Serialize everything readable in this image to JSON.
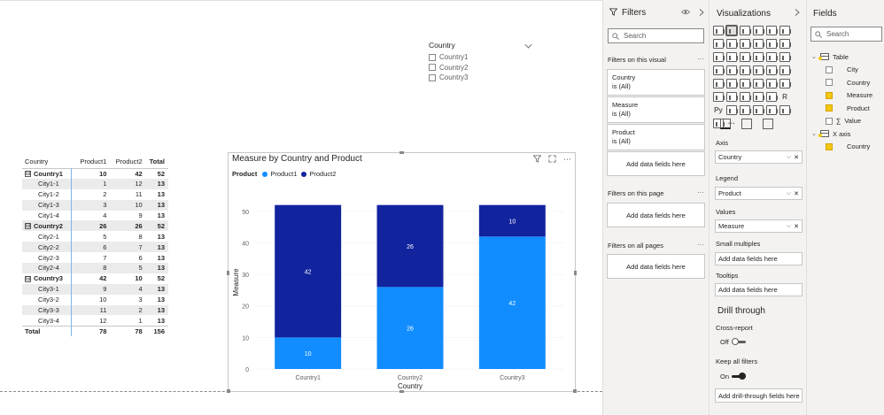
{
  "slicer": {
    "title": "Country",
    "options": [
      "Country1",
      "Country2",
      "Country3"
    ]
  },
  "matrix": {
    "headers": [
      "Country",
      "Product1",
      "Product2",
      "Total"
    ],
    "rows": [
      {
        "type": "group",
        "label": "Country1",
        "p1": "10",
        "p2": "42",
        "total": "52",
        "toggle": "⊟"
      },
      {
        "type": "child",
        "label": "City1-1",
        "p1": "1",
        "p2": "12",
        "total": "13"
      },
      {
        "type": "child",
        "label": "City1-2",
        "p1": "2",
        "p2": "11",
        "total": "13"
      },
      {
        "type": "child",
        "label": "City1-3",
        "p1": "3",
        "p2": "10",
        "total": "13"
      },
      {
        "type": "child",
        "label": "City1-4",
        "p1": "4",
        "p2": "9",
        "total": "13"
      },
      {
        "type": "group",
        "label": "Country2",
        "p1": "26",
        "p2": "26",
        "total": "52",
        "toggle": "⊟"
      },
      {
        "type": "child",
        "label": "City2-1",
        "p1": "5",
        "p2": "8",
        "total": "13"
      },
      {
        "type": "child",
        "label": "City2-2",
        "p1": "6",
        "p2": "7",
        "total": "13"
      },
      {
        "type": "child",
        "label": "City2-3",
        "p1": "7",
        "p2": "6",
        "total": "13"
      },
      {
        "type": "child",
        "label": "City2-4",
        "p1": "8",
        "p2": "5",
        "total": "13"
      },
      {
        "type": "group",
        "label": "Country3",
        "p1": "42",
        "p2": "10",
        "total": "52",
        "toggle": "⊟"
      },
      {
        "type": "child",
        "label": "City3-1",
        "p1": "9",
        "p2": "4",
        "total": "13"
      },
      {
        "type": "child",
        "label": "City3-2",
        "p1": "10",
        "p2": "3",
        "total": "13"
      },
      {
        "type": "child",
        "label": "City3-3",
        "p1": "11",
        "p2": "2",
        "total": "13"
      },
      {
        "type": "child",
        "label": "City3-4",
        "p1": "12",
        "p2": "1",
        "total": "13"
      }
    ],
    "total_row": {
      "label": "Total",
      "p1": "78",
      "p2": "78",
      "total": "156"
    }
  },
  "chart": {
    "filter_icon": "funnel-icon",
    "focus_icon": "expand-icon",
    "more_icon": "⋯"
  },
  "chart_data": {
    "type": "bar",
    "stacked": true,
    "title": "Measure by Country and Product",
    "xlabel": "Country",
    "ylabel": "Measure",
    "legend_title": "Product",
    "categories": [
      "Country1",
      "Country2",
      "Country3"
    ],
    "series": [
      {
        "name": "Product1",
        "values": [
          10,
          26,
          42
        ],
        "color": "#118dff"
      },
      {
        "name": "Product2",
        "values": [
          42,
          26,
          10
        ],
        "color": "#12239e"
      }
    ],
    "ylim": [
      0,
      55
    ],
    "yticks": [
      0,
      10,
      20,
      30,
      40,
      50
    ],
    "grid": true,
    "legend_position": "top-left"
  },
  "filters_pane": {
    "title": "Filters",
    "search_placeholder": "Search",
    "on_visual_label": "Filters on this visual",
    "cards": [
      {
        "name": "Country",
        "state": "is (All)"
      },
      {
        "name": "Measure",
        "state": "is (All)"
      },
      {
        "name": "Product",
        "state": "is (All)"
      }
    ],
    "add_fields": "Add data fields here",
    "on_page_label": "Filters on this page",
    "on_all_label": "Filters on all pages",
    "dots": "···"
  },
  "viz_pane": {
    "title": "Visualizations",
    "icon_rows": [
      [
        "",
        "",
        "",
        "",
        "",
        ""
      ],
      [
        "",
        "",
        "",
        "",
        "",
        ""
      ],
      [
        "",
        "",
        "",
        "",
        "",
        ""
      ],
      [
        "",
        "",
        "",
        "",
        "",
        ""
      ],
      [
        "",
        "",
        "",
        "",
        "",
        ""
      ],
      [
        "",
        "",
        "",
        "",
        "",
        "R"
      ],
      [
        "Py",
        "",
        "",
        "",
        "",
        ""
      ],
      [
        "",
        "···",
        "",
        "",
        "",
        ""
      ]
    ],
    "axis_label": "Axis",
    "axis_value": "Country",
    "legend_label": "Legend",
    "legend_value": "Product",
    "values_label": "Values",
    "values_value": "Measure",
    "small_multiples_label": "Small multiples",
    "tooltips_label": "Tooltips",
    "add_here": "Add data fields here",
    "drill_title": "Drill through",
    "cross_report_label": "Cross-report",
    "cross_report_state": "Off",
    "keep_filters_label": "Keep all filters",
    "keep_filters_state": "On",
    "drill_add": "Add drill-through fields here"
  },
  "fields_pane": {
    "title": "Fields",
    "search_placeholder": "Search",
    "tables": [
      {
        "name": "Table",
        "fields": [
          {
            "name": "City",
            "checked": false
          },
          {
            "name": "Country",
            "checked": false
          },
          {
            "name": "Measure",
            "checked": true
          },
          {
            "name": "Product",
            "checked": true
          },
          {
            "name": "Value",
            "checked": false,
            "sigma": "∑"
          }
        ]
      },
      {
        "name": "X axis",
        "fields": [
          {
            "name": "Country",
            "checked": true
          }
        ]
      }
    ]
  },
  "colors": {
    "product1": "#118dff",
    "product2": "#12239e",
    "accent": "#f2c811"
  }
}
